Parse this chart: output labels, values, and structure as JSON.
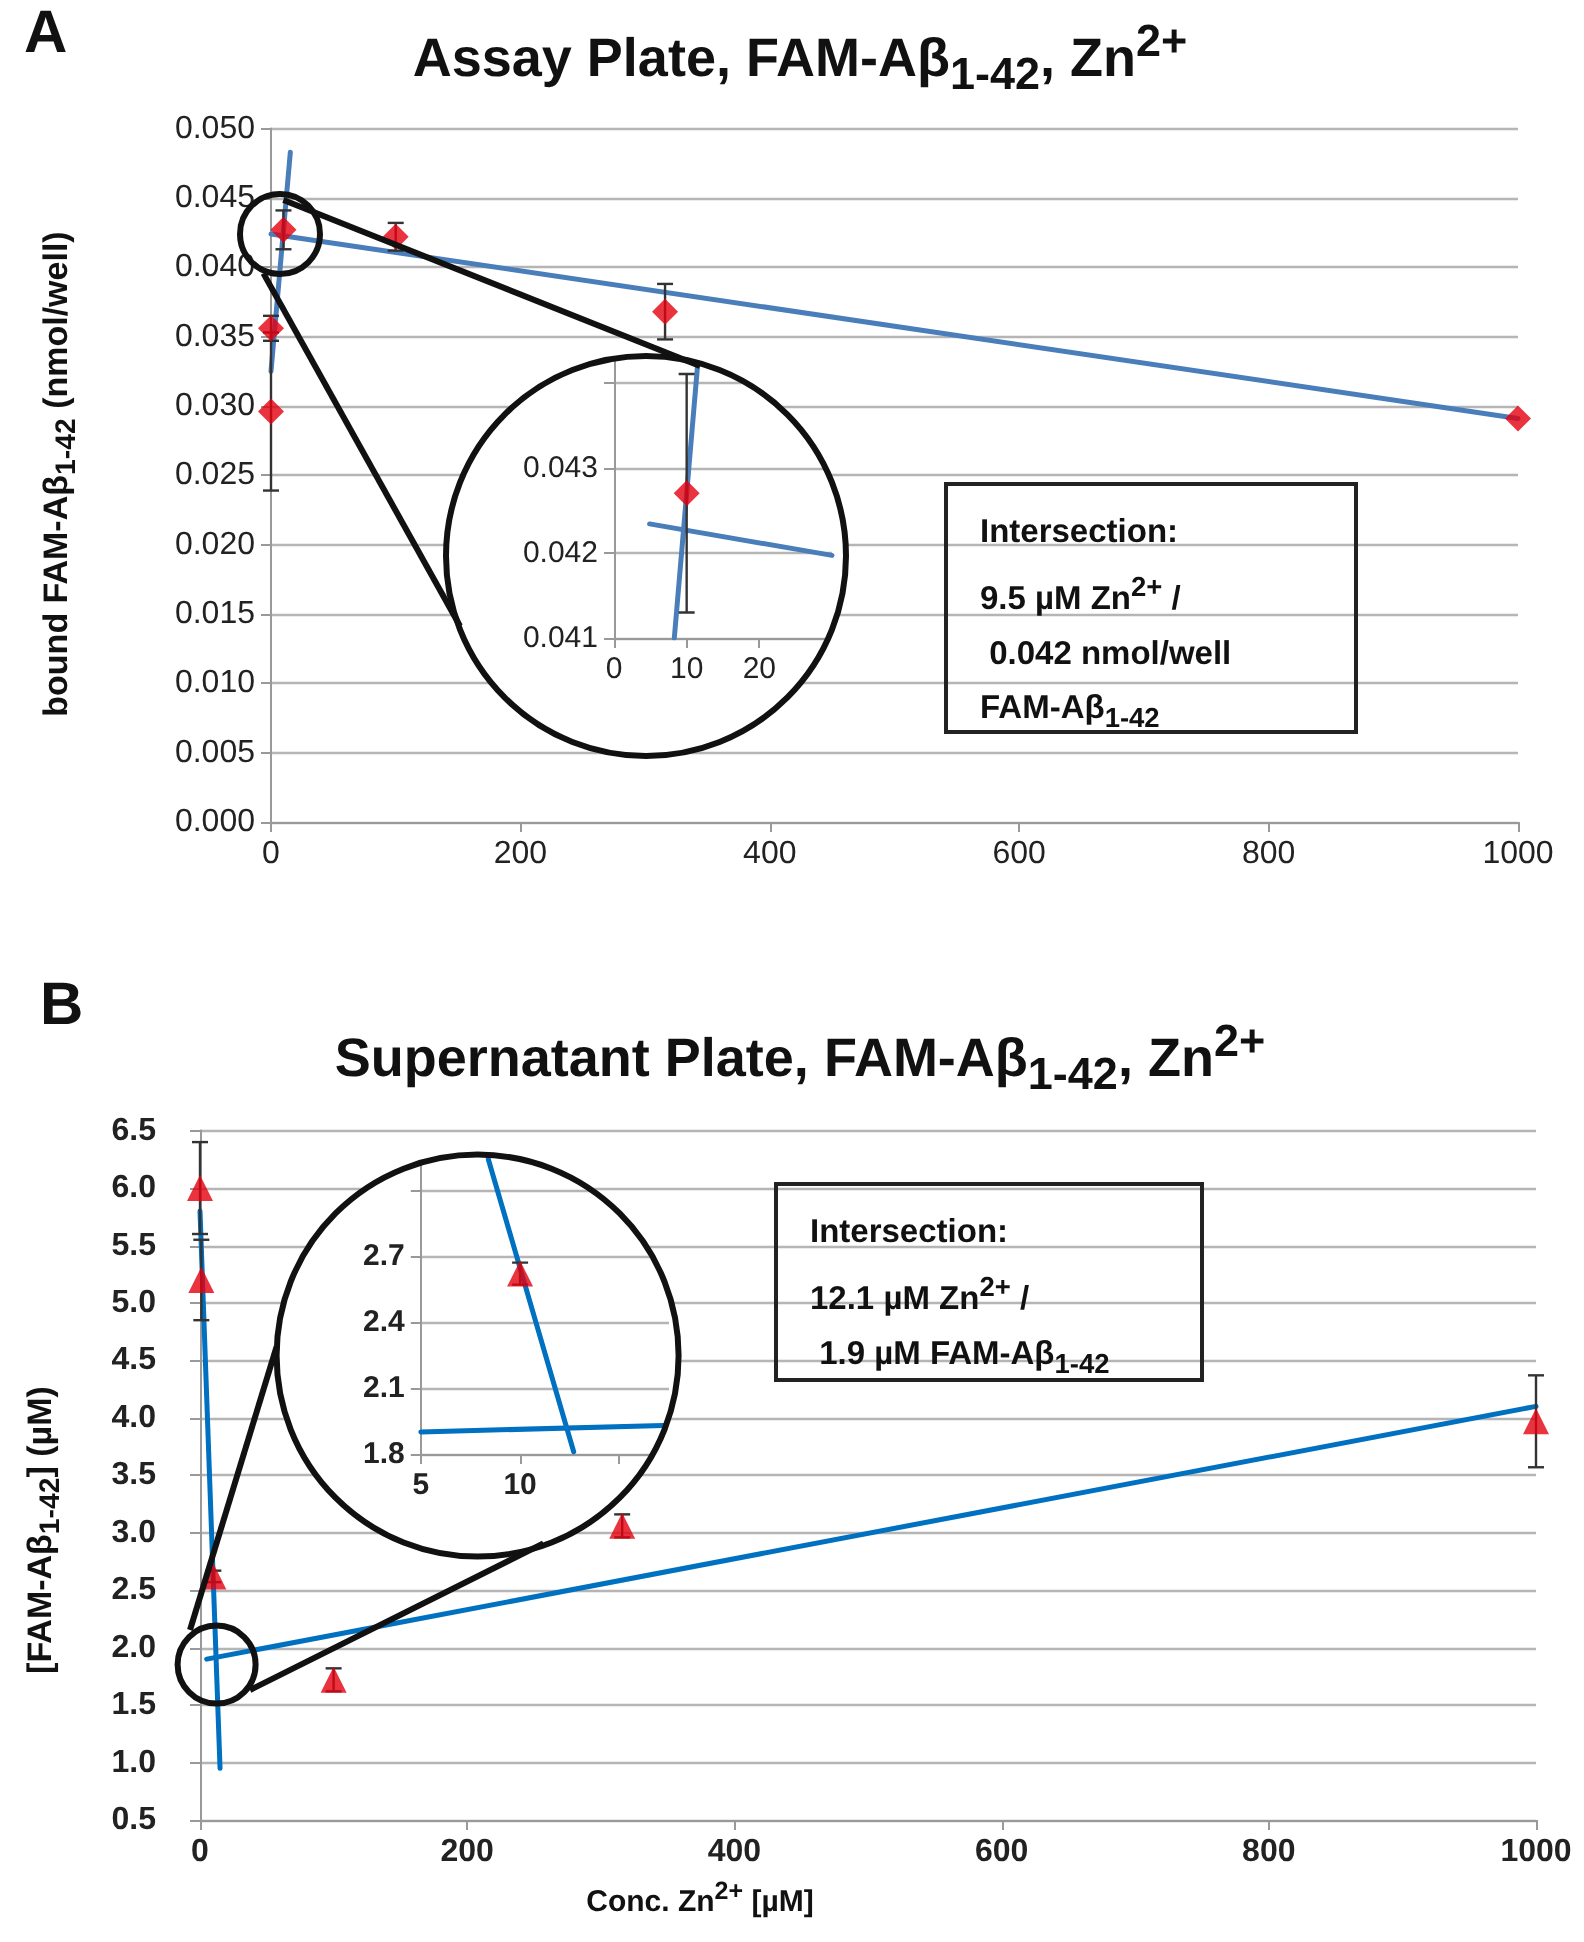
{
  "chart_data": [
    {
      "type": "scatter",
      "title": "Assay Plate, FAM-Aβ$_{1-42}$, Zn$^{2+}$",
      "ylabel": "bound FAM-Aβ$_{1-42}$ (nmol/well)",
      "annotations": [
        "A",
        "Intersection:\n9.5 µM Zn$^{2+}$ /\n 0.042 nmol/well\nFAM-Aβ$_{1-42}$"
      ],
      "xlim": [
        0,
        1000
      ],
      "xticks": [
        0,
        200,
        400,
        600,
        800,
        1000
      ],
      "ylim": [
        0,
        0.05
      ],
      "yticks": [
        {
          "value": 0,
          "label": "0.000"
        },
        {
          "value": 0.005,
          "label": "0.005"
        },
        {
          "value": 0.01,
          "label": "0.010"
        },
        {
          "value": 0.015,
          "label": "0.015"
        },
        {
          "value": 0.02,
          "label": "0.020"
        },
        {
          "value": 0.025,
          "label": "0.025"
        },
        {
          "value": 0.03,
          "label": "0.030"
        },
        {
          "value": 0.035,
          "label": "0.035"
        },
        {
          "value": 0.04,
          "label": "0.040"
        },
        {
          "value": 0.045,
          "label": "0.045"
        },
        {
          "value": 0.05,
          "label": "0.050"
        }
      ],
      "grid": "y",
      "series": [
        {
          "marker": "diamond",
          "color": "#e3000f",
          "x": [
            0,
            0,
            10,
            100,
            316,
            1000
          ],
          "values": [
            0.0296,
            0.0356,
            0.0427,
            0.0422,
            0.0368,
            0.0291
          ],
          "errors": [
            0.0057,
            0.0009,
            0.0014,
            0.001,
            0.002,
            null
          ]
        },
        {
          "type": "line",
          "marker": "none",
          "color": "#4a7ebb",
          "x": [
            0,
            1000
          ],
          "values": [
            0.0424,
            0.0291
          ]
        },
        {
          "type": "line",
          "marker": "none",
          "color": "#4a7ebb",
          "x": [
            0,
            15.5
          ],
          "values": [
            0.0325,
            0.0483
          ]
        }
      ]
    },
    {
      "type": "scatter",
      "xlim": [
        0,
        30
      ],
      "xticks": [
        0,
        10,
        20
      ],
      "ylim": [
        0.041,
        0.0445
      ],
      "yticks": [
        0.041,
        0.042,
        0.043,
        {
          "value": 0.044,
          "label": null
        }
      ],
      "grid": "y",
      "series": [
        {
          "marker": "diamond",
          "color": "#e3000f",
          "x": [
            10
          ],
          "values": [
            0.0427
          ],
          "errors": [
            0.0014
          ]
        },
        {
          "type": "line",
          "marker": "none",
          "color": "#4a7ebb",
          "x": [
            4.9,
            30
          ],
          "values": [
            0.04234,
            0.04197
          ]
        },
        {
          "type": "line",
          "marker": "none",
          "color": "#4a7ebb",
          "x": [
            8.3,
            11.6
          ],
          "values": [
            0.041,
            0.0443
          ]
        }
      ]
    },
    {
      "type": "scatter",
      "title": "Supernatant Plate, FAM-Aβ$_{1-42}$, Zn$^{2+}$",
      "xlabel": "Conc. Zn$^{2+}$ [µM]",
      "ylabel": "[FAM-Aβ$_{1-42}$] (µM)",
      "annotations": [
        "B",
        "Intersection:\n12.1 µM Zn$^{2+}$ /\n 1.9 µM FAM-Aβ$_{1-42}$"
      ],
      "xlim": [
        0,
        1000
      ],
      "xticks": [
        0,
        200,
        400,
        600,
        800,
        1000
      ],
      "ylim": [
        0.5,
        6.5
      ],
      "yticks": [
        0.5,
        {
          "value": 1,
          "label": "1.0"
        },
        1.5,
        {
          "value": 2,
          "label": "2.0"
        },
        2.5,
        {
          "value": 3,
          "label": "3.0"
        },
        3.5,
        {
          "value": 4,
          "label": "4.0"
        },
        4.5,
        {
          "value": 5,
          "label": "5.0"
        },
        5.5,
        {
          "value": 6,
          "label": "6.0"
        },
        6.5
      ],
      "grid": "y",
      "series": [
        {
          "marker": "triangle",
          "color": "#e3000f",
          "x": [
            0,
            1,
            10,
            100,
            316,
            1000
          ],
          "values": [
            6.0,
            5.2,
            2.62,
            1.72,
            3.06,
            3.97
          ],
          "errors": [
            0.4,
            0.35,
            0.05,
            0.1,
            0.1,
            0.4
          ]
        },
        {
          "type": "line",
          "marker": "none",
          "color": "#0070c0",
          "x": [
            5,
            1000
          ],
          "values": [
            1.9,
            4.1
          ]
        },
        {
          "type": "line",
          "marker": "none",
          "color": "#0070c0",
          "x": [
            0,
            15
          ],
          "values": [
            5.8,
            0.95
          ]
        }
      ]
    },
    {
      "type": "scatter",
      "xlim": [
        5,
        17.5
      ],
      "xticks": [
        5,
        10,
        {
          "value": 15,
          "label": null
        }
      ],
      "ylim": [
        1.8,
        3.2
      ],
      "yticks": [
        1.8,
        2.1,
        2.4,
        2.7,
        {
          "value": 3,
          "label": null
        }
      ],
      "grid": "y",
      "series": [
        {
          "marker": "triangle",
          "color": "#e3000f",
          "x": [
            10
          ],
          "values": [
            2.62
          ],
          "errors": [
            0.05
          ]
        },
        {
          "type": "line",
          "marker": "none",
          "color": "#0070c0",
          "x": [
            5,
            17.2
          ],
          "values": [
            1.9,
            1.93
          ]
        },
        {
          "type": "line",
          "marker": "none",
          "color": "#0070c0",
          "x": [
            8.4,
            12.7
          ],
          "values": [
            3.14,
            1.81
          ]
        }
      ]
    }
  ]
}
